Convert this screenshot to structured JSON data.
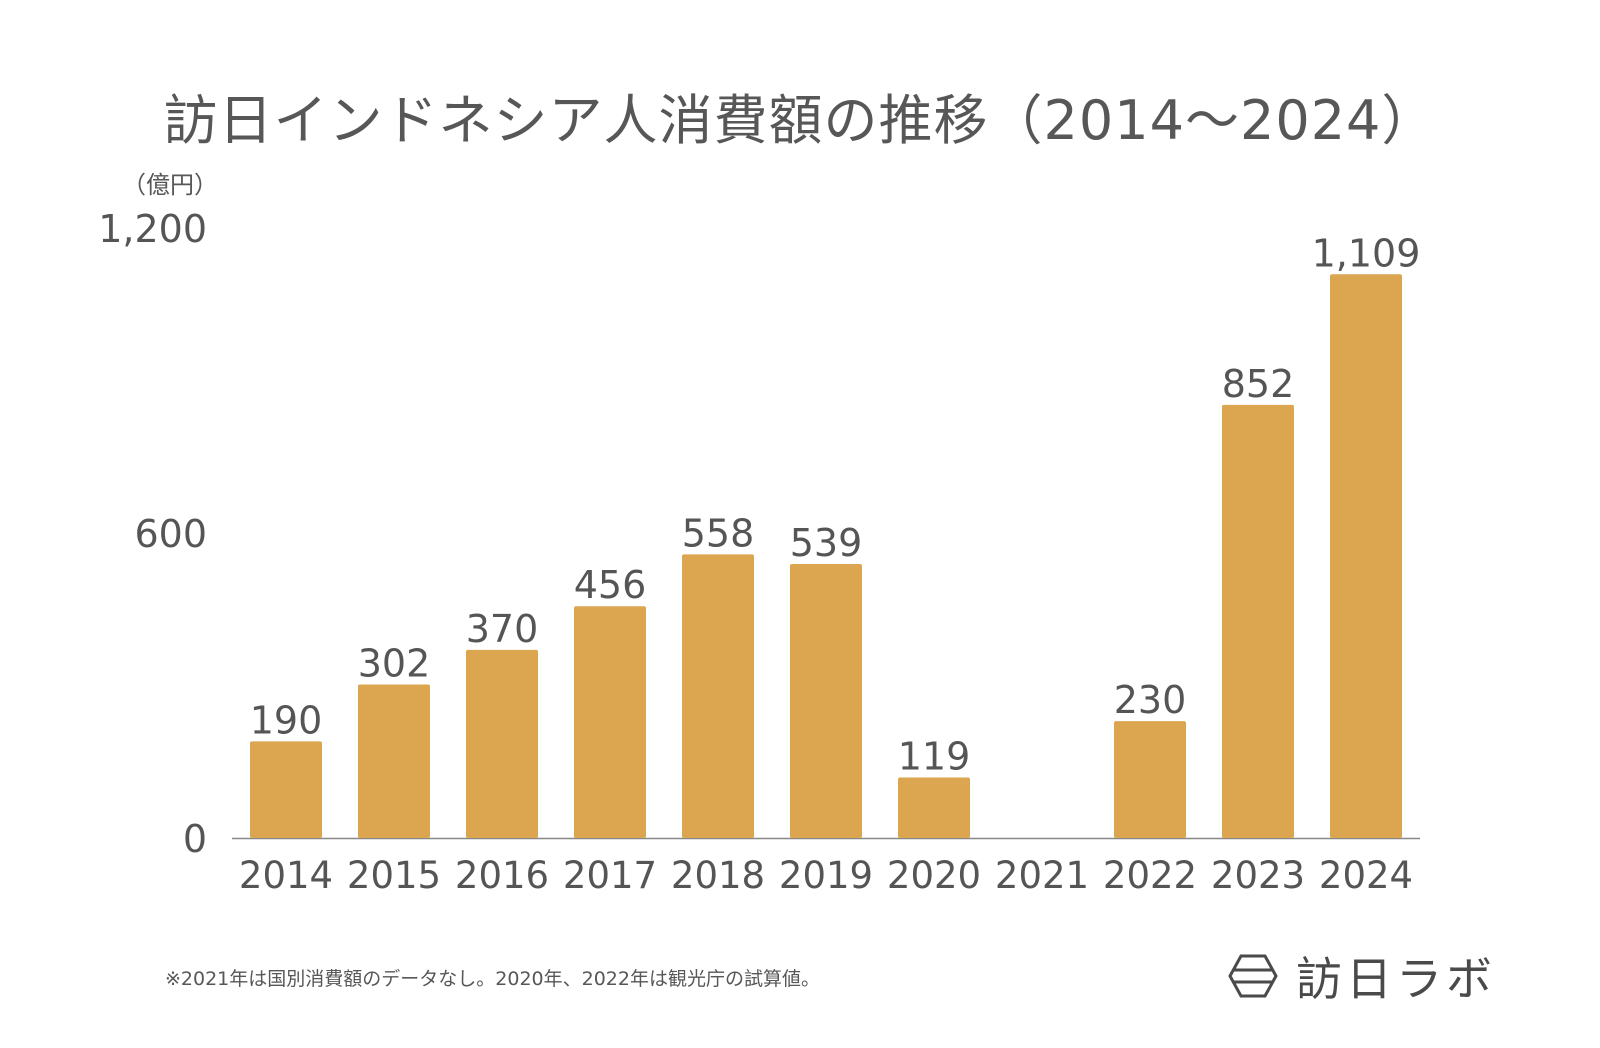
{
  "title": "訪日インドネシア人消費額の推移（2014〜2024）",
  "unit_label": "（億円）",
  "footnote": "※2021年は国別消費額のデータなし。2020年、2022年は観光庁の試算値。",
  "logo": {
    "text": "訪日ラボ",
    "icon": "hexagon-logo-icon"
  },
  "colors": {
    "bar": "#DCA550",
    "axis": "#888888",
    "text": "#555555"
  },
  "chart_data": {
    "type": "bar",
    "title": "訪日インドネシア人消費額の推移（2014〜2024）",
    "ylabel": "（億円）",
    "xlabel": "",
    "categories": [
      "2014",
      "2015",
      "2016",
      "2017",
      "2018",
      "2019",
      "2020",
      "2021",
      "2022",
      "2023",
      "2024"
    ],
    "values": [
      190,
      302,
      370,
      456,
      558,
      539,
      119,
      null,
      230,
      852,
      1109
    ],
    "value_labels": [
      "190",
      "302",
      "370",
      "456",
      "558",
      "539",
      "119",
      "",
      "230",
      "852",
      "1,109"
    ],
    "ylim": [
      0,
      1200
    ],
    "yticks": [
      0,
      600,
      1200
    ],
    "ytick_labels": [
      "0",
      "600",
      "1,200"
    ],
    "grid": false,
    "legend": "none"
  }
}
